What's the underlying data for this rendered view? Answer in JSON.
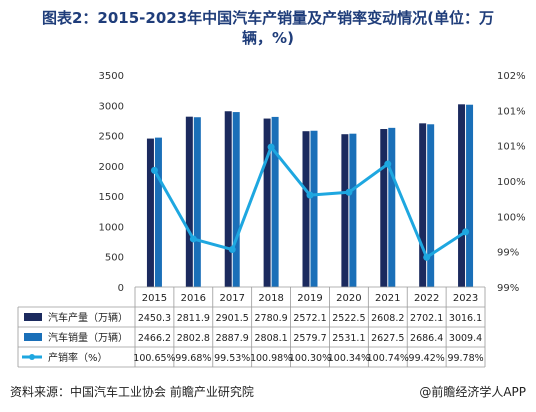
{
  "title_line1": "图表2：2015-2023年中国汽车产销量及产销率变动情况(单位：万",
  "title_line2": "辆，%)",
  "source": "资料来源：中国汽车工业协会 前瞻产业研究院",
  "brand": "@前瞻经济学人APP",
  "colors": {
    "production": "#1b2a5e",
    "sales": "#1a6fb8",
    "rate": "#1ea7e0",
    "title": "#1f3d7a"
  },
  "chart_data": {
    "type": "bar",
    "categories": [
      "2015",
      "2016",
      "2017",
      "2018",
      "2019",
      "2020",
      "2021",
      "2022",
      "2023"
    ],
    "series": [
      {
        "name": "汽车产量（万辆）",
        "type": "bar",
        "axis": "left",
        "values": [
          2450.3,
          2811.9,
          2901.5,
          2780.9,
          2572.1,
          2522.5,
          2608.2,
          2702.1,
          3016.1
        ],
        "labels": [
          "2450.3",
          "2811.9",
          "2901.5",
          "2780.9",
          "2572.1",
          "2522.5",
          "2608.2",
          "2702.1",
          "3016.1"
        ]
      },
      {
        "name": "汽车销量（万辆）",
        "type": "bar",
        "axis": "left",
        "values": [
          2466.2,
          2802.8,
          2887.9,
          2808.1,
          2579.7,
          2531.1,
          2627.5,
          2686.4,
          3009.4
        ],
        "labels": [
          "2466.2",
          "2802.8",
          "2887.9",
          "2808.1",
          "2579.7",
          "2531.1",
          "2627.5",
          "2686.4",
          "3009.4"
        ]
      },
      {
        "name": "产销率（%）",
        "type": "line",
        "axis": "right",
        "values": [
          100.65,
          99.68,
          99.53,
          100.98,
          100.3,
          100.34,
          100.74,
          99.42,
          99.78
        ],
        "labels": [
          "100.65%",
          "99.68%",
          "99.53%",
          "100.98%",
          "100.30%",
          "100.34%",
          "100.74%",
          "99.42%",
          "99.78%"
        ]
      }
    ],
    "left_axis": {
      "min": 0,
      "max": 3500,
      "ticks": [
        "0",
        "500",
        "1000",
        "1500",
        "2000",
        "2500",
        "3000",
        "3500"
      ]
    },
    "right_axis": {
      "min": 99,
      "max": 102,
      "ticks": [
        "99%",
        "99%",
        "100%",
        "100%",
        "101%",
        "101%",
        "102%"
      ]
    },
    "grid": false,
    "legend": "table"
  }
}
